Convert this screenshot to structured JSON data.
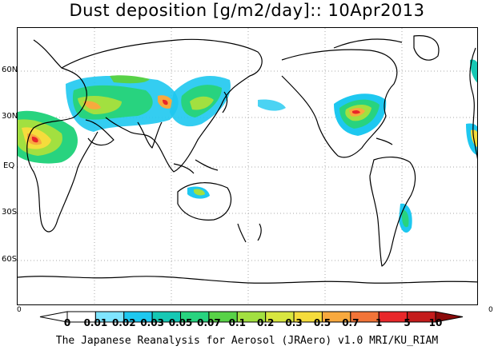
{
  "title": "Dust deposition [g/m2/day]:: 10Apr2013",
  "latitude_labels": [
    "60N",
    "30N",
    "EQ",
    "30S",
    "60S"
  ],
  "corner_labels": [
    "0",
    "0"
  ],
  "colorbar": {
    "ticks": [
      "0",
      "0.01",
      "0.02",
      "0.03",
      "0.05",
      "0.07",
      "0.1",
      "0.2",
      "0.3",
      "0.5",
      "0.7",
      "1",
      "5",
      "10"
    ],
    "colors": [
      "#ffffff",
      "#ffffff",
      "#7fe5ff",
      "#1ec8f0",
      "#16c8b4",
      "#28d37f",
      "#58d247",
      "#a2e040",
      "#d8e640",
      "#f5dc3c",
      "#f8a93e",
      "#f27438",
      "#e8272a",
      "#c41c1c",
      "#8b0a0a"
    ]
  },
  "footer": "The Japanese Reanalysis for Aerosol (JRAero) v1.0 MRI/KU_RIAM"
}
